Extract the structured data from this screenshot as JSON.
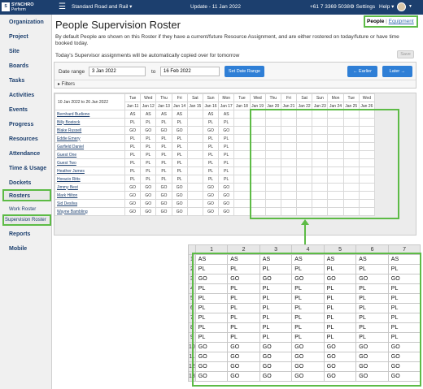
{
  "topbar": {
    "logo_mark": "SYNCHRO",
    "logo_brand": "SYNCHRO",
    "logo_sub": "Perform",
    "company": "Standard Road and Rail ▾",
    "update": "Update - 11 Jan 2022",
    "phone": "+61 7 3369 5038",
    "settings": "⚙ Settings",
    "help": "Help ▾"
  },
  "sidebar": {
    "items": [
      "Organization",
      "Project",
      "Site",
      "Boards",
      "Tasks",
      "Activities",
      "Events",
      "Progress",
      "Resources",
      "Attendance",
      "Time & Usage",
      "Dockets",
      "Rosters",
      "Reports",
      "Mobile"
    ],
    "sub_items": [
      "Work Roster",
      "Supervision Roster"
    ],
    "accent": "#5dbb46"
  },
  "page": {
    "title": "People Supervision Roster",
    "view_people": "People",
    "view_sep": "|",
    "view_equipment": "Equipment",
    "description": "By default People are shown on this Roster if they have a current/future Resource Assignment, and are either rostered on today/future or have time booked today.",
    "copy_note": "Today's Supervisor assignments will be automatically copied over for tomorrow",
    "save_label": "Save"
  },
  "filters": {
    "date_range_label": "Date range",
    "date_from": "3 Jan 2022",
    "to_label": "to",
    "date_to": "16 Feb 2022",
    "set_button": "Set Date Range",
    "earlier_button": "← Earlier",
    "later_button": "Later →",
    "filters_label": "▸ Filters"
  },
  "roster": {
    "range_label": "10 Jan 2022 to 26 Jan 2022",
    "days": [
      {
        "dow": "Tue",
        "date": "Jan 11"
      },
      {
        "dow": "Wed",
        "date": "Jan 12"
      },
      {
        "dow": "Thu",
        "date": "Jan 13"
      },
      {
        "dow": "Fri",
        "date": "Jan 14"
      },
      {
        "dow": "Sat",
        "date": "Jan 15"
      },
      {
        "dow": "Sun",
        "date": "Jan 16"
      },
      {
        "dow": "Mon",
        "date": "Jan 17"
      },
      {
        "dow": "Tue",
        "date": "Jan 18"
      },
      {
        "dow": "Wed",
        "date": "Jan 19"
      },
      {
        "dow": "Thu",
        "date": "Jan 20"
      },
      {
        "dow": "Fri",
        "date": "Jan 21"
      },
      {
        "dow": "Sat",
        "date": "Jan 22"
      },
      {
        "dow": "Sun",
        "date": "Jan 23"
      },
      {
        "dow": "Mon",
        "date": "Jan 24"
      },
      {
        "dow": "Tue",
        "date": "Jan 25"
      },
      {
        "dow": "Wed",
        "date": "Jan 26"
      }
    ],
    "rows": [
      {
        "name": "Bernhard Budiono",
        "cells": [
          "AS",
          "AS",
          "AS",
          "AS",
          "",
          "AS",
          "AS"
        ]
      },
      {
        "name": "Billy Bostock",
        "cells": [
          "PL",
          "PL",
          "PL",
          "PL",
          "",
          "PL",
          "PL"
        ]
      },
      {
        "name": "Blake Russell",
        "cells": [
          "GO",
          "GO",
          "GO",
          "GO",
          "",
          "GO",
          "GO"
        ]
      },
      {
        "name": "Eddie Emery",
        "cells": [
          "PL",
          "PL",
          "PL",
          "PL",
          "",
          "PL",
          "PL"
        ]
      },
      {
        "name": "Garfield Daniel",
        "cells": [
          "PL",
          "PL",
          "PL",
          "PL",
          "",
          "PL",
          "PL"
        ]
      },
      {
        "name": "Guest One",
        "cells": [
          "PL",
          "PL",
          "PL",
          "PL",
          "",
          "PL",
          "PL"
        ]
      },
      {
        "name": "Guest Two",
        "cells": [
          "PL",
          "PL",
          "PL",
          "PL",
          "",
          "PL",
          "PL"
        ]
      },
      {
        "name": "Heather James",
        "cells": [
          "PL",
          "PL",
          "PL",
          "PL",
          "",
          "PL",
          "PL"
        ]
      },
      {
        "name": "Horacio Ritts",
        "cells": [
          "PL",
          "PL",
          "PL",
          "PL",
          "",
          "PL",
          "PL"
        ]
      },
      {
        "name": "Jimmy Best",
        "cells": [
          "GO",
          "GO",
          "GO",
          "GO",
          "",
          "GO",
          "GO"
        ]
      },
      {
        "name": "Mark Hilton",
        "cells": [
          "GO",
          "GO",
          "GO",
          "GO",
          "",
          "GO",
          "GO"
        ]
      },
      {
        "name": "Sid Desilva",
        "cells": [
          "GO",
          "GO",
          "GO",
          "GO",
          "",
          "GO",
          "GO"
        ]
      },
      {
        "name": "Wayne Bambling",
        "cells": [
          "GO",
          "GO",
          "GO",
          "GO",
          "",
          "GO",
          "GO"
        ]
      }
    ]
  },
  "paste_grid": {
    "columns": [
      "1",
      "2",
      "3",
      "4",
      "5",
      "6",
      "7"
    ],
    "rows": [
      [
        "AS",
        "AS",
        "AS",
        "AS",
        "AS",
        "AS",
        "AS"
      ],
      [
        "PL",
        "PL",
        "PL",
        "PL",
        "PL",
        "PL",
        "PL"
      ],
      [
        "GO",
        "GO",
        "GO",
        "GO",
        "GO",
        "GO",
        "GO"
      ],
      [
        "PL",
        "PL",
        "PL",
        "PL",
        "PL",
        "PL",
        "PL"
      ],
      [
        "PL",
        "PL",
        "PL",
        "PL",
        "PL",
        "PL",
        "PL"
      ],
      [
        "PL",
        "PL",
        "PL",
        "PL",
        "PL",
        "PL",
        "PL"
      ],
      [
        "PL",
        "PL",
        "PL",
        "PL",
        "PL",
        "PL",
        "PL"
      ],
      [
        "PL",
        "PL",
        "PL",
        "PL",
        "PL",
        "PL",
        "PL"
      ],
      [
        "PL",
        "PL",
        "PL",
        "PL",
        "PL",
        "PL",
        "PL"
      ],
      [
        "GO",
        "GO",
        "GO",
        "GO",
        "GO",
        "GO",
        "GO"
      ],
      [
        "GO",
        "GO",
        "GO",
        "GO",
        "GO",
        "GO",
        "GO"
      ],
      [
        "GO",
        "GO",
        "GO",
        "GO",
        "GO",
        "GO",
        "GO"
      ],
      [
        "GO",
        "GO",
        "GO",
        "GO",
        "GO",
        "GO",
        "GO"
      ]
    ]
  }
}
